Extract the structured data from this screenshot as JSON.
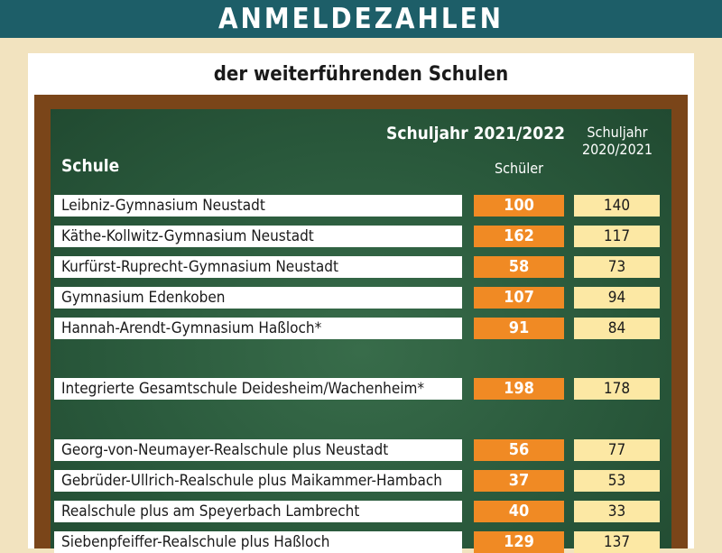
{
  "header": {
    "title": "ANMELDEZAHLEN",
    "subtitle": "der weiterführenden Schulen"
  },
  "colors": {
    "header_bar": "#1d5e68",
    "board": "#29583b",
    "frame": "#7a4519",
    "current_year": "#f08a24",
    "previous_year": "#fce8a4"
  },
  "chart_data": {
    "type": "table",
    "title": "ANMELDEZAHLEN",
    "subtitle": "der weiterführenden Schulen",
    "column_header": "Schule",
    "current_label": "Schuljahr 2021/2022",
    "current_sublabel": "Schüler",
    "previous_label_line1": "Schuljahr",
    "previous_label_line2": "2020/2021",
    "categories": [
      "Leibniz-Gymnasium Neustadt",
      "Käthe-Kollwitz-Gymnasium Neustadt",
      "Kurfürst-Ruprecht-Gymnasium Neustadt",
      "Gymnasium Edenkoben",
      "Hannah-Arendt-Gymnasium Haßloch*",
      "Integrierte Gesamtschule Deidesheim/Wachenheim*",
      "Georg-von-Neumayer-Realschule plus Neustadt",
      "Gebrüder-Ullrich-Realschule plus Maikammer-Hambach",
      "Realschule plus am Speyerbach Lambrecht",
      "Siebenpfeiffer-Realschule plus Haßloch"
    ],
    "series": [
      {
        "name": "Schuljahr 2021/2022",
        "values": [
          100,
          162,
          58,
          107,
          91,
          198,
          56,
          37,
          40,
          129
        ]
      },
      {
        "name": "Schuljahr 2020/2021",
        "values": [
          140,
          117,
          73,
          94,
          84,
          178,
          77,
          53,
          33,
          137
        ]
      }
    ]
  }
}
